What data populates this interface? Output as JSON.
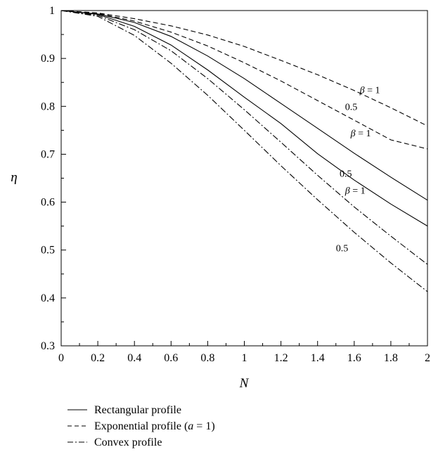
{
  "chart_data": {
    "type": "line",
    "title": "",
    "xlabel": "N",
    "ylabel": "η",
    "xlim": [
      0,
      2
    ],
    "ylim": [
      0.3,
      1
    ],
    "xticks": [
      "0",
      "0.2",
      "0.4",
      "0.6",
      "0.8",
      "1",
      "1.2",
      "1.4",
      "1.6",
      "1.8",
      "2"
    ],
    "yticks": [
      "0.3",
      "0.4",
      "0.5",
      "0.6",
      "0.7",
      "0.8",
      "0.9",
      "1"
    ],
    "grid": false,
    "legend_position": "bottom",
    "x": [
      0,
      0.2,
      0.4,
      0.6,
      0.8,
      1.0,
      1.2,
      1.4,
      1.6,
      1.8,
      2.0
    ],
    "series": [
      {
        "profile": "Rectangular profile",
        "beta": "β = 1",
        "style": "solid",
        "values": [
          1.0,
          0.993,
          0.975,
          0.946,
          0.905,
          0.858,
          0.806,
          0.754,
          0.702,
          0.652,
          0.604
        ]
      },
      {
        "profile": "Rectangular profile",
        "beta": "0.5",
        "style": "solid",
        "values": [
          1.0,
          0.992,
          0.967,
          0.928,
          0.876,
          0.819,
          0.764,
          0.701,
          0.646,
          0.596,
          0.55
        ]
      },
      {
        "profile": "Exponential profile (a = 1)",
        "beta": "β = 1",
        "style": "dashed",
        "values": [
          1.0,
          0.995,
          0.983,
          0.968,
          0.949,
          0.925,
          0.896,
          0.866,
          0.833,
          0.797,
          0.759
        ]
      },
      {
        "profile": "Exponential profile (a = 1)",
        "beta": "0.5",
        "style": "dashed",
        "values": [
          1.0,
          0.994,
          0.978,
          0.955,
          0.926,
          0.891,
          0.853,
          0.812,
          0.771,
          0.73,
          0.711
        ]
      },
      {
        "profile": "Convex profile",
        "beta": "β = 1",
        "style": "dashdot",
        "values": [
          1.0,
          0.99,
          0.96,
          0.916,
          0.858,
          0.793,
          0.725,
          0.656,
          0.59,
          0.529,
          0.47
        ]
      },
      {
        "profile": "Convex profile",
        "beta": "0.5",
        "style": "dashdot",
        "values": [
          1.0,
          0.988,
          0.948,
          0.89,
          0.823,
          0.75,
          0.676,
          0.605,
          0.537,
          0.473,
          0.413
        ]
      }
    ],
    "annotations": [
      {
        "text": "β = 1",
        "x": 1.63,
        "y": 0.835
      },
      {
        "text": "0.5",
        "x": 1.55,
        "y": 0.8
      },
      {
        "text": "β = 1",
        "x": 1.58,
        "y": 0.745
      },
      {
        "text": "0.5",
        "x": 1.52,
        "y": 0.66
      },
      {
        "text": "β = 1",
        "x": 1.55,
        "y": 0.625
      },
      {
        "text": "0.5",
        "x": 1.5,
        "y": 0.505
      }
    ],
    "legend": [
      {
        "label": "Rectangular profile",
        "style": "solid"
      },
      {
        "label": "Exponential profile (a = 1)",
        "style": "dashed"
      },
      {
        "label": "Convex profile",
        "style": "dashdot"
      }
    ]
  }
}
